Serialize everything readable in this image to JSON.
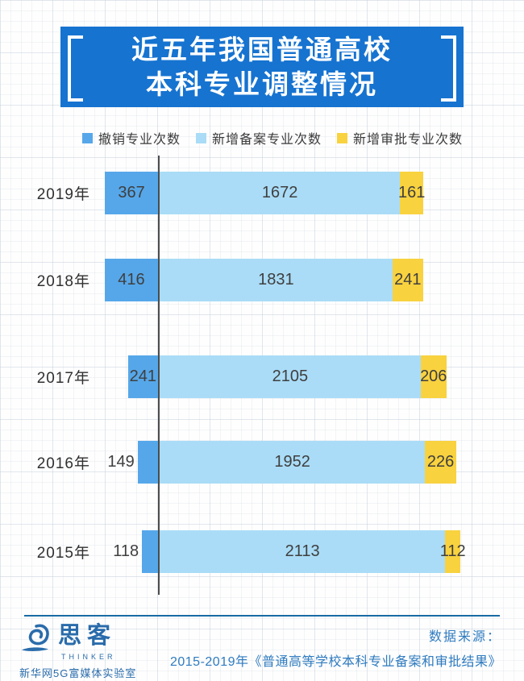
{
  "title": {
    "line1": "近五年我国普通高校",
    "line2": "本科专业调整情况"
  },
  "legend": [
    {
      "label": "撤销专业次数",
      "color": "#56a7e9"
    },
    {
      "label": "新增备案专业次数",
      "color": "#aadcf7"
    },
    {
      "label": "新增审批专业次数",
      "color": "#f8d23f"
    }
  ],
  "chart_data": {
    "type": "bar",
    "orientation": "horizontal",
    "stacked": true,
    "categories": [
      "2019年",
      "2018年",
      "2017年",
      "2016年",
      "2015年"
    ],
    "series": [
      {
        "key": "revoked",
        "name": "撤销专业次数",
        "color": "#56a7e9",
        "values": [
          367,
          416,
          241,
          149,
          118
        ]
      },
      {
        "key": "registered",
        "name": "新增备案专业次数",
        "color": "#aadcf7",
        "values": [
          1672,
          1831,
          2105,
          1952,
          2113
        ]
      },
      {
        "key": "approved",
        "name": "新增审批专业次数",
        "color": "#f8d23f",
        "values": [
          161,
          241,
          206,
          226,
          112
        ]
      }
    ],
    "title": "近五年我国普通高校本科专业调整情况",
    "xlabel": "",
    "ylabel": "",
    "grid": "light graph-paper background",
    "legend_position": "top",
    "layout_note": "each year bar normalized to equal total width; 撤销 segment extends left of the vertical axis line, 新增 segments extend right; all segment values labeled on the bars"
  },
  "footer": {
    "source_label": "数据来源：",
    "source_text": "2015-2019年《普通高等学校本科专业备案和审批结果》",
    "logo_name": "思客",
    "logo_sub": "THINKER",
    "logo_org": "新华网5G富媒体实验室"
  },
  "colors": {
    "banner": "#1673d0",
    "revoked": "#56a7e9",
    "registered": "#aadcf7",
    "approved": "#f8d23f",
    "axis_line": "#4c4c4c",
    "value_text": "#3f3f3f",
    "footer_text": "#2e7bbf",
    "logo_blue": "#2a6cab",
    "divider": "#1a6ba3"
  }
}
